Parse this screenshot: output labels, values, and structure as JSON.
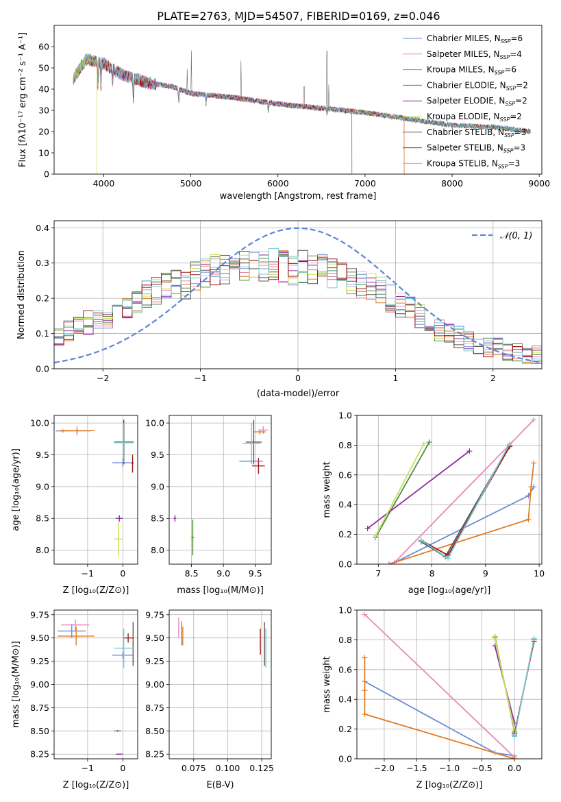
{
  "figure_title": "PLATE=2763, MJD=54507, FIBERID=0169, z=0.046",
  "colors": {
    "chabrier_miles": "#6b8bd6",
    "salpeter_miles": "#e988b8",
    "kroupa_miles": "#e37a22",
    "chabrier_elodie": "#4e8a4e",
    "salpeter_elodie": "#8e2ba0",
    "kroupa_elodie": "#c7e24f",
    "chabrier_stelib": "#555555",
    "salpeter_stelib": "#a01818",
    "kroupa_stelib": "#78c9cf",
    "normal": "#5b86d6",
    "grid": "#b0b0b0"
  },
  "chart_data": [
    {
      "id": "spectrum",
      "type": "line",
      "title": "PLATE=2763, MJD=54507, FIBERID=0169, z=0.046",
      "xlabel": "wavelength [Angstrom, rest frame]",
      "ylabel": "Flux [fλ10⁻¹⁷ erg cm⁻² s⁻¹ A⁻¹]",
      "xlim": [
        3430,
        9030
      ],
      "ylim": [
        0,
        70
      ],
      "xticks": [
        4000,
        5000,
        6000,
        7000,
        8000,
        9000
      ],
      "yticks": [
        0,
        10,
        20,
        30,
        40,
        50,
        60
      ],
      "grid": false,
      "legend": "top-right",
      "legend_entries": [
        {
          "label": "Chabrier MILES, N",
          "sub": "SSP",
          "n": "=6"
        },
        {
          "label": "Salpeter MILES, N",
          "sub": "SSP",
          "n": "=4"
        },
        {
          "label": "Kroupa MILES, N",
          "sub": "SSP",
          "n": "=6"
        },
        {
          "label": "Chabrier ELODIE, N",
          "sub": "SSP",
          "n": "=2"
        },
        {
          "label": "Salpeter ELODIE, N",
          "sub": "SSP",
          "n": "=2"
        },
        {
          "label": "Kroupa ELODIE, N",
          "sub": "SSP",
          "n": "=2"
        },
        {
          "label": "Chabrier STELIB, N",
          "sub": "SSP",
          "n": "=3"
        },
        {
          "label": "Salpeter STELIB, N",
          "sub": "SSP",
          "n": "=3"
        },
        {
          "label": "Kroupa STELIB, N",
          "sub": "SSP",
          "n": "=3"
        }
      ],
      "continuum": {
        "x": [
          3650,
          3800,
          4000,
          4200,
          4500,
          4800,
          5000,
          5500,
          6000,
          6500,
          7000,
          7500,
          8000,
          8500,
          8900
        ],
        "y": [
          45,
          54,
          52,
          47,
          43,
          41,
          38,
          36,
          33,
          31,
          29,
          26,
          23,
          22,
          20
        ]
      },
      "series_ends": [
        8900,
        7450,
        7450,
        8900,
        6850,
        3920,
        8900,
        8900,
        8900
      ]
    },
    {
      "id": "residuals",
      "type": "line",
      "xlabel": "(data-model)/error",
      "ylabel": "Normed distribution",
      "xlim": [
        -2.5,
        2.5
      ],
      "ylim": [
        0,
        0.42
      ],
      "xticks": [
        -2,
        -1,
        0,
        1,
        2
      ],
      "yticks": [
        0.0,
        0.1,
        0.2,
        0.3,
        0.4
      ],
      "grid": true,
      "legend": "top-right",
      "legend_label": "𝒩(0, 1)",
      "hist_bins": [
        -2.5,
        2.5,
        50
      ],
      "hist_mean": [
        0.09,
        0.11,
        0.12,
        0.13,
        0.14,
        0.15,
        0.16,
        0.17,
        0.19,
        0.21,
        0.22,
        0.23,
        0.24,
        0.24,
        0.26,
        0.27,
        0.28,
        0.28,
        0.29,
        0.29,
        0.3,
        0.29,
        0.3,
        0.29,
        0.28,
        0.29,
        0.28,
        0.28,
        0.27,
        0.26,
        0.25,
        0.24,
        0.23,
        0.22,
        0.2,
        0.18,
        0.17,
        0.15,
        0.13,
        0.11,
        0.1,
        0.09,
        0.08,
        0.07,
        0.06,
        0.06,
        0.05,
        0.05,
        0.04,
        0.04
      ]
    },
    {
      "id": "age-vs-Z",
      "type": "scatter",
      "xlabel": "Z [log₁₀(Z/Z⊙)]",
      "ylabel": "age  [log₁₀(age/yr)]",
      "xlim": [
        -1.95,
        0.42
      ],
      "ylim": [
        7.78,
        10.12
      ],
      "xticks": [
        -1,
        0
      ],
      "yticks": [
        8.0,
        8.5,
        9.0,
        9.5,
        10.0
      ],
      "grid": true,
      "bars": [
        {
          "s": 0,
          "x1": -1.9,
          "x2": -1.5,
          "y1": 9.85,
          "y2": 9.9
        },
        {
          "s": 1,
          "x1": -1.7,
          "x2": -0.9,
          "y1": 9.8,
          "y2": 9.95
        },
        {
          "s": 2,
          "x1": -1.8,
          "x2": -0.8,
          "y1": 9.84,
          "y2": 9.92
        },
        {
          "s": 0,
          "x1": -0.3,
          "x2": 0.3,
          "y1": 9.3,
          "y2": 9.45
        },
        {
          "s": 3,
          "x1": -0.25,
          "x2": 0.3,
          "y1": 9.35,
          "y2": 10.05
        },
        {
          "s": 6,
          "x1": -0.25,
          "x2": 0.3,
          "y1": 9.35,
          "y2": 10.05
        },
        {
          "s": 8,
          "x1": -0.25,
          "x2": 0.28,
          "y1": 9.38,
          "y2": 10.0
        },
        {
          "s": 7,
          "x1": 0.25,
          "x2": 0.3,
          "y1": 9.22,
          "y2": 9.5
        },
        {
          "s": 4,
          "x1": -0.2,
          "x2": 0.0,
          "y1": 8.45,
          "y2": 8.55
        },
        {
          "s": 5,
          "x1": -0.25,
          "x2": 0.0,
          "y1": 7.9,
          "y2": 8.45
        }
      ]
    },
    {
      "id": "age-vs-mass",
      "type": "scatter",
      "xlabel": "mass [log₁₀(M/M⊙)]",
      "xlim": [
        8.15,
        9.75
      ],
      "ylim": [
        7.78,
        10.12
      ],
      "xticks": [
        8.5,
        9.0,
        9.5
      ],
      "yticks": [
        8.0,
        8.5,
        9.0,
        9.5,
        10.0
      ],
      "grid": true,
      "bars": [
        {
          "s": 4,
          "x1": 8.22,
          "x2": 8.26,
          "y1": 8.45,
          "y2": 8.55
        },
        {
          "s": 5,
          "x1": 8.48,
          "x2": 8.52,
          "y1": 7.9,
          "y2": 8.45
        },
        {
          "s": 3,
          "x1": 8.5,
          "x2": 8.54,
          "y1": 7.92,
          "y2": 8.48
        },
        {
          "s": 0,
          "x1": 9.25,
          "x2": 9.62,
          "y1": 9.38,
          "y2": 9.42
        },
        {
          "s": 6,
          "x1": 9.35,
          "x2": 9.6,
          "y1": 9.35,
          "y2": 10.05
        },
        {
          "s": 7,
          "x1": 9.45,
          "x2": 9.65,
          "y1": 9.2,
          "y2": 9.45
        },
        {
          "s": 8,
          "x1": 9.3,
          "x2": 9.58,
          "y1": 9.35,
          "y2": 10.0
        },
        {
          "s": 1,
          "x1": 9.55,
          "x2": 9.7,
          "y1": 9.83,
          "y2": 9.95
        },
        {
          "s": 2,
          "x1": 9.48,
          "x2": 9.66,
          "y1": 9.82,
          "y2": 9.9
        }
      ]
    },
    {
      "id": "weight-vs-age",
      "type": "line",
      "xlabel": "age  [log₁₀(age/yr)]",
      "ylabel": "mass weight",
      "xlim": [
        6.6,
        10.05
      ],
      "ylim": [
        0,
        1
      ],
      "xticks": [
        7,
        8,
        9,
        10
      ],
      "yticks": [
        0.0,
        0.2,
        0.4,
        0.6,
        0.8,
        1.0
      ],
      "grid": true,
      "series": [
        {
          "s": 0,
          "x": [
            7.3,
            9.8,
            9.9
          ],
          "y": [
            0.01,
            0.46,
            0.52
          ]
        },
        {
          "s": 1,
          "x": [
            7.3,
            9.9
          ],
          "y": [
            0.01,
            0.97
          ]
        },
        {
          "s": 2,
          "x": [
            7.2,
            9.8,
            9.85,
            9.9
          ],
          "y": [
            0.0,
            0.3,
            0.52,
            0.68
          ]
        },
        {
          "s": 3,
          "x": [
            6.95,
            7.95
          ],
          "y": [
            0.18,
            0.82
          ]
        },
        {
          "s": 4,
          "x": [
            6.8,
            8.7
          ],
          "y": [
            0.24,
            0.76
          ]
        },
        {
          "s": 5,
          "x": [
            6.95,
            7.85
          ],
          "y": [
            0.19,
            0.81
          ]
        },
        {
          "s": 6,
          "x": [
            7.8,
            8.25,
            9.45
          ],
          "y": [
            0.15,
            0.05,
            0.8
          ]
        },
        {
          "s": 7,
          "x": [
            7.8,
            8.3,
            9.45
          ],
          "y": [
            0.16,
            0.06,
            0.79
          ]
        },
        {
          "s": 8,
          "x": [
            7.8,
            8.3,
            9.45
          ],
          "y": [
            0.16,
            0.04,
            0.81
          ]
        }
      ]
    },
    {
      "id": "mass-vs-Z",
      "type": "scatter",
      "xlabel": "Z [log₁₀(Z/Z⊙)]",
      "ylabel": "mass [log₁₀(M/M⊙)]",
      "xlim": [
        -1.95,
        0.42
      ],
      "ylim": [
        8.2,
        9.8
      ],
      "xticks": [
        -1,
        0
      ],
      "yticks": [
        8.25,
        8.5,
        8.75,
        9.0,
        9.25,
        9.5,
        9.75
      ],
      "grid": true,
      "bars": [
        {
          "s": 0,
          "x1": -1.85,
          "x2": -1.05,
          "y1": 9.5,
          "y2": 9.65
        },
        {
          "s": 1,
          "x1": -1.75,
          "x2": -0.95,
          "y1": 9.58,
          "y2": 9.7
        },
        {
          "s": 2,
          "x1": -1.85,
          "x2": -0.8,
          "y1": 9.42,
          "y2": 9.62
        },
        {
          "s": 0,
          "x1": -0.3,
          "x2": 0.3,
          "y1": 9.28,
          "y2": 9.35
        },
        {
          "s": 6,
          "x1": 0.28,
          "x2": 0.3,
          "y1": 9.2,
          "y2": 9.67
        },
        {
          "s": 7,
          "x1": 0.0,
          "x2": 0.3,
          "y1": 9.45,
          "y2": 9.55
        },
        {
          "s": 8,
          "x1": -0.25,
          "x2": 0.3,
          "y1": 9.18,
          "y2": 9.6
        },
        {
          "s": 3,
          "x1": -0.25,
          "x2": -0.05,
          "y1": 8.49,
          "y2": 8.51
        },
        {
          "s": 4,
          "x1": -0.2,
          "x2": 0.0,
          "y1": 8.25,
          "y2": 8.25
        }
      ]
    },
    {
      "id": "mass-vs-EBV",
      "type": "scatter",
      "xlabel": "E(B-V)",
      "xlim": [
        0.057,
        0.132
      ],
      "ylim": [
        8.2,
        9.8
      ],
      "xticks": [
        0.075,
        0.1,
        0.125
      ],
      "xtick_labels": [
        "0.075",
        "0.100",
        "0.125"
      ],
      "yticks": [
        8.25,
        8.5,
        8.75,
        9.0,
        9.25,
        9.5,
        9.75
      ],
      "grid": true,
      "bars": [
        {
          "s": 1,
          "x1": 0.064,
          "x2": 0.064,
          "y1": 9.5,
          "y2": 9.72
        },
        {
          "s": 0,
          "x1": 0.066,
          "x2": 0.066,
          "y1": 9.42,
          "y2": 9.68
        },
        {
          "s": 2,
          "x1": 0.067,
          "x2": 0.067,
          "y1": 9.42,
          "y2": 9.62
        },
        {
          "s": 7,
          "x1": 0.124,
          "x2": 0.124,
          "y1": 9.32,
          "y2": 9.6
        },
        {
          "s": 6,
          "x1": 0.127,
          "x2": 0.127,
          "y1": 9.2,
          "y2": 9.67
        },
        {
          "s": 8,
          "x1": 0.128,
          "x2": 0.128,
          "y1": 9.18,
          "y2": 9.6
        }
      ]
    },
    {
      "id": "weight-vs-Z",
      "type": "line",
      "xlabel": "Z [log₁₀(Z/Z⊙)]",
      "ylabel": "mass weight",
      "xlim": [
        -2.42,
        0.42
      ],
      "ylim": [
        0,
        1
      ],
      "xticks": [
        -2.0,
        -1.5,
        -1.0,
        -0.5,
        0.0
      ],
      "xtick_labels": [
        "−2.0",
        "−1.5",
        "−1.0",
        "−0.5",
        "0.0"
      ],
      "yticks": [
        0.0,
        0.2,
        0.4,
        0.6,
        0.8,
        1.0
      ],
      "grid": true,
      "series": [
        {
          "s": 0,
          "x": [
            -2.3,
            -0.3,
            0.0
          ],
          "y": [
            0.52,
            0.04,
            0.02
          ]
        },
        {
          "s": 1,
          "x": [
            -2.3,
            0.0
          ],
          "y": [
            0.97,
            0.01
          ]
        },
        {
          "s": 2,
          "x": [
            -2.3,
            -2.3,
            -2.3,
            0.0
          ],
          "y": [
            0.68,
            0.46,
            0.3,
            0.0
          ]
        },
        {
          "s": 3,
          "x": [
            -0.3,
            0.0
          ],
          "y": [
            0.82,
            0.18
          ]
        },
        {
          "s": 4,
          "x": [
            -0.3,
            0.0
          ],
          "y": [
            0.76,
            0.24
          ]
        },
        {
          "s": 5,
          "x": [
            -0.3,
            0.0
          ],
          "y": [
            0.81,
            0.19
          ]
        },
        {
          "s": 6,
          "x": [
            0.0,
            0.3
          ],
          "y": [
            0.16,
            0.8
          ]
        },
        {
          "s": 7,
          "x": [
            0.0,
            0.3
          ],
          "y": [
            0.17,
            0.79
          ]
        },
        {
          "s": 8,
          "x": [
            0.0,
            0.3
          ],
          "y": [
            0.15,
            0.81
          ]
        }
      ]
    }
  ]
}
